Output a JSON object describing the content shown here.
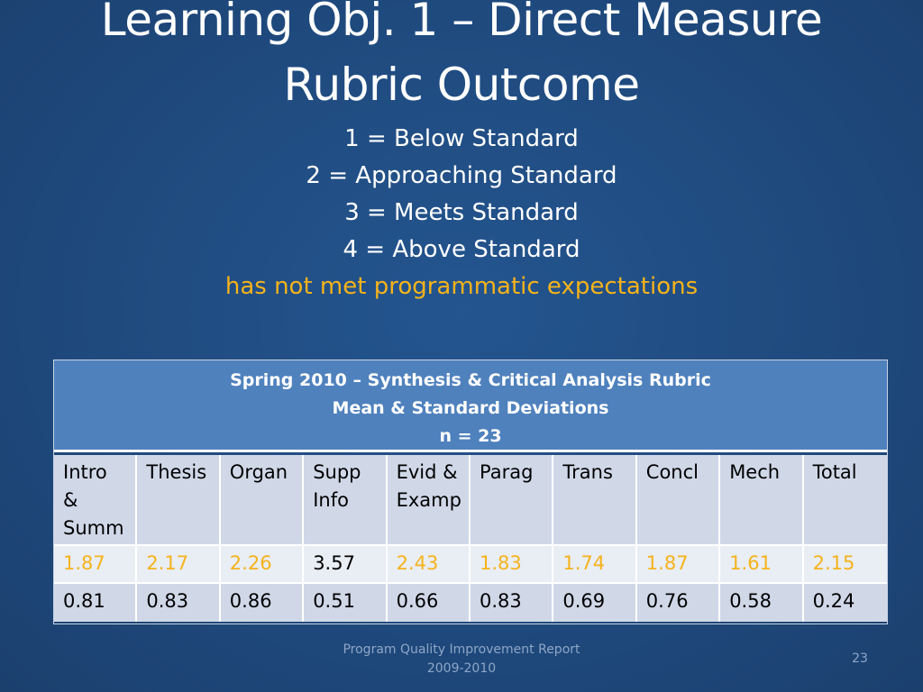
{
  "slide": {
    "title_line1": "Learning Obj. 1 – Direct Measure",
    "title_line2": "Rubric Outcome",
    "scale": [
      "1 = Below Standard",
      "2 = Approaching Standard",
      "3 = Meets Standard",
      "4 = Above Standard"
    ],
    "warning_note": "has not met programmatic expectations",
    "colors": {
      "background": "#1f4a7e",
      "warning": "#f5b31b",
      "table_header": "#4f81bd",
      "table_row_dark": "#d0d8e8",
      "table_row_light": "#e9edf4"
    }
  },
  "table": {
    "header_line1": "Spring 2010 – Synthesis & Critical Analysis Rubric",
    "header_line2": "Mean & Standard Deviations",
    "header_line3": "n = 23",
    "columns": [
      {
        "line1": "Intro",
        "line2": "&",
        "line3": "Summ"
      },
      {
        "line1": "Thesis",
        "line2": "",
        "line3": ""
      },
      {
        "line1": "Organ",
        "line2": "",
        "line3": ""
      },
      {
        "line1": "Supp",
        "line2": "Info",
        "line3": ""
      },
      {
        "line1": "Evid &",
        "line2": "Examp",
        "line3": ""
      },
      {
        "line1": "Parag",
        "line2": "",
        "line3": ""
      },
      {
        "line1": "Trans",
        "line2": "",
        "line3": ""
      },
      {
        "line1": "Concl",
        "line2": "",
        "line3": ""
      },
      {
        "line1": "Mech",
        "line2": "",
        "line3": ""
      },
      {
        "line1": "Total",
        "line2": "",
        "line3": ""
      }
    ],
    "means": [
      "1.87",
      "2.17",
      "2.26",
      "3.57",
      "2.43",
      "1.83",
      "1.74",
      "1.87",
      "1.61",
      "2.15"
    ],
    "means_below_expectation": [
      true,
      true,
      true,
      false,
      true,
      true,
      true,
      true,
      true,
      true
    ],
    "std_devs": [
      "0.81",
      "0.83",
      "0.86",
      "0.51",
      "0.66",
      "0.83",
      "0.69",
      "0.76",
      "0.58",
      "0.24"
    ]
  },
  "footer": {
    "report_line1": "Program Quality Improvement Report",
    "report_line2": "2009-2010",
    "page_number": "23"
  }
}
